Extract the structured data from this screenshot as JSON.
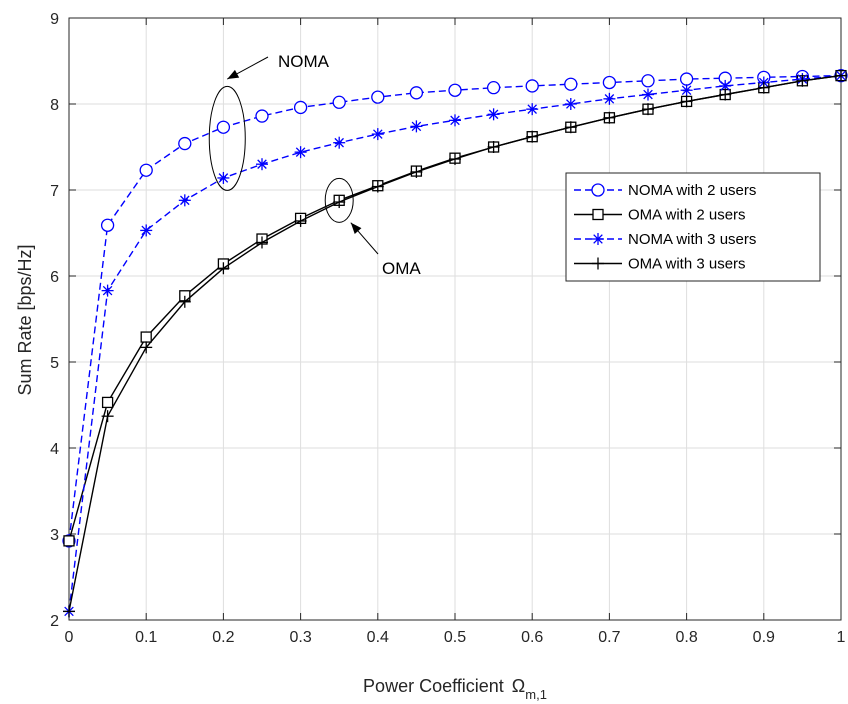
{
  "chart_data": {
    "type": "line",
    "xlabel": "Power Coefficient",
    "xlabel_symbol": "Ω",
    "xlabel_subscript": "m,1",
    "ylabel": "Sum Rate [bps/Hz]",
    "xlim": [
      0,
      1
    ],
    "ylim": [
      2,
      9
    ],
    "xticks": [
      0,
      0.1,
      0.2,
      0.3,
      0.4,
      0.5,
      0.6,
      0.7,
      0.8,
      0.9,
      1
    ],
    "xtick_labels": [
      "0",
      "0.1",
      "0.2",
      "0.3",
      "0.4",
      "0.5",
      "0.6",
      "0.7",
      "0.8",
      "0.9",
      "1"
    ],
    "yticks": [
      2,
      3,
      4,
      5,
      6,
      7,
      8,
      9
    ],
    "ytick_labels": [
      "2",
      "3",
      "4",
      "5",
      "6",
      "7",
      "8",
      "9"
    ],
    "grid": true,
    "legend_position": "right-middle",
    "x": [
      0,
      0.05,
      0.1,
      0.15,
      0.2,
      0.25,
      0.3,
      0.35,
      0.4,
      0.45,
      0.5,
      0.55,
      0.6,
      0.65,
      0.7,
      0.75,
      0.8,
      0.85,
      0.9,
      0.95,
      1
    ],
    "series": [
      {
        "name": "NOMA with 2 users",
        "color": "#0000ff",
        "line_style": "dashed",
        "marker": "circle",
        "values": [
          2.92,
          6.59,
          7.23,
          7.54,
          7.73,
          7.86,
          7.96,
          8.02,
          8.08,
          8.13,
          8.16,
          8.19,
          8.21,
          8.23,
          8.25,
          8.27,
          8.29,
          8.3,
          8.31,
          8.32,
          8.33
        ]
      },
      {
        "name": "OMA with 2 users",
        "color": "#000000",
        "line_style": "solid",
        "marker": "square",
        "values": [
          2.92,
          4.53,
          5.29,
          5.77,
          6.14,
          6.43,
          6.67,
          6.88,
          7.05,
          7.22,
          7.37,
          7.5,
          7.62,
          7.73,
          7.84,
          7.94,
          8.03,
          8.11,
          8.19,
          8.27,
          8.33
        ]
      },
      {
        "name": "NOMA with 3 users",
        "color": "#0000ff",
        "line_style": "dashed",
        "marker": "asterisk",
        "values": [
          2.1,
          5.83,
          6.53,
          6.88,
          7.14,
          7.3,
          7.44,
          7.55,
          7.65,
          7.74,
          7.81,
          7.88,
          7.94,
          8.0,
          8.06,
          8.11,
          8.16,
          8.21,
          8.25,
          8.29,
          8.33
        ]
      },
      {
        "name": "OMA with 3 users",
        "color": "#000000",
        "line_style": "solid",
        "marker": "plus",
        "values": [
          2.1,
          4.37,
          5.17,
          5.7,
          6.09,
          6.39,
          6.64,
          6.86,
          7.04,
          7.21,
          7.36,
          7.5,
          7.62,
          7.73,
          7.84,
          7.94,
          8.03,
          8.11,
          8.19,
          8.27,
          8.33
        ]
      }
    ],
    "annotations": [
      {
        "text": "NOMA",
        "ellipse_center": [
          0.205,
          7.6
        ],
        "arrow_tip": [
          0.205,
          8.29
        ]
      },
      {
        "text": "OMA",
        "ellipse_center": [
          0.35,
          6.88
        ],
        "arrow_tip": [
          0.365,
          6.62
        ]
      }
    ]
  }
}
